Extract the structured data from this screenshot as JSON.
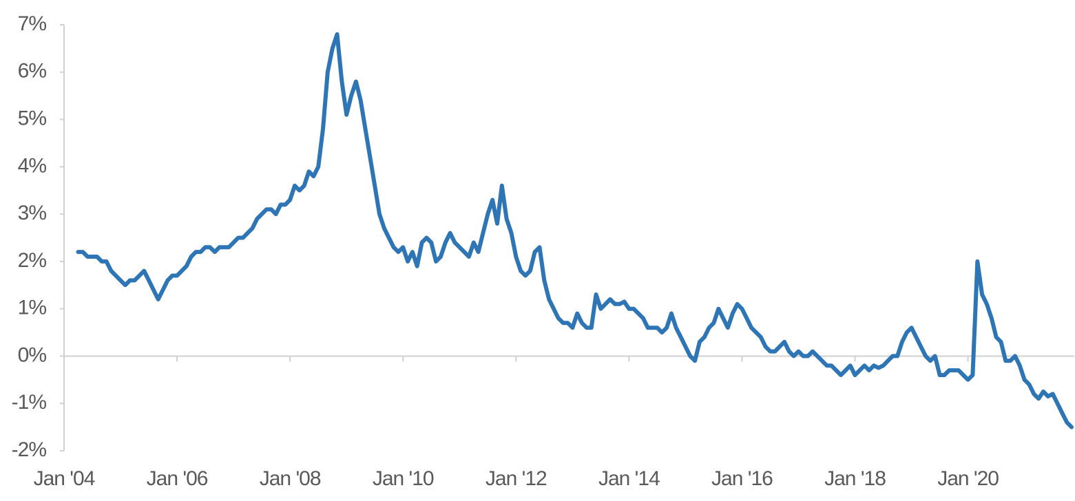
{
  "chart_data": {
    "type": "line",
    "x": [
      "2004-04",
      "2004-05",
      "2004-06",
      "2004-07",
      "2004-08",
      "2004-09",
      "2004-10",
      "2004-11",
      "2004-12",
      "2005-01",
      "2005-02",
      "2005-03",
      "2005-04",
      "2005-05",
      "2005-06",
      "2005-07",
      "2005-08",
      "2005-09",
      "2005-10",
      "2005-11",
      "2005-12",
      "2006-01",
      "2006-02",
      "2006-03",
      "2006-04",
      "2006-05",
      "2006-06",
      "2006-07",
      "2006-08",
      "2006-09",
      "2006-10",
      "2006-11",
      "2006-12",
      "2007-01",
      "2007-02",
      "2007-03",
      "2007-04",
      "2007-05",
      "2007-06",
      "2007-07",
      "2007-08",
      "2007-09",
      "2007-10",
      "2007-11",
      "2007-12",
      "2008-01",
      "2008-02",
      "2008-03",
      "2008-04",
      "2008-05",
      "2008-06",
      "2008-07",
      "2008-08",
      "2008-09",
      "2008-10",
      "2008-11",
      "2008-12",
      "2009-01",
      "2009-02",
      "2009-03",
      "2009-04",
      "2009-05",
      "2009-06",
      "2009-07",
      "2009-08",
      "2009-09",
      "2009-10",
      "2009-11",
      "2009-12",
      "2010-01",
      "2010-02",
      "2010-03",
      "2010-04",
      "2010-05",
      "2010-06",
      "2010-07",
      "2010-08",
      "2010-09",
      "2010-10",
      "2010-11",
      "2010-12",
      "2011-01",
      "2011-02",
      "2011-03",
      "2011-04",
      "2011-05",
      "2011-06",
      "2011-07",
      "2011-08",
      "2011-09",
      "2011-10",
      "2011-11",
      "2011-12",
      "2012-01",
      "2012-02",
      "2012-03",
      "2012-04",
      "2012-05",
      "2012-06",
      "2012-07",
      "2012-08",
      "2012-09",
      "2012-10",
      "2012-11",
      "2012-12",
      "2013-01",
      "2013-02",
      "2013-03",
      "2013-04",
      "2013-05",
      "2013-06",
      "2013-07",
      "2013-08",
      "2013-09",
      "2013-10",
      "2013-11",
      "2013-12",
      "2014-01",
      "2014-02",
      "2014-03",
      "2014-04",
      "2014-05",
      "2014-06",
      "2014-07",
      "2014-08",
      "2014-09",
      "2014-10",
      "2014-11",
      "2014-12",
      "2015-01",
      "2015-02",
      "2015-03",
      "2015-04",
      "2015-05",
      "2015-06",
      "2015-07",
      "2015-08",
      "2015-09",
      "2015-10",
      "2015-11",
      "2015-12",
      "2016-01",
      "2016-02",
      "2016-03",
      "2016-04",
      "2016-05",
      "2016-06",
      "2016-07",
      "2016-08",
      "2016-09",
      "2016-10",
      "2016-11",
      "2016-12",
      "2017-01",
      "2017-02",
      "2017-03",
      "2017-04",
      "2017-05",
      "2017-06",
      "2017-07",
      "2017-08",
      "2017-09",
      "2017-10",
      "2017-11",
      "2017-12",
      "2018-01",
      "2018-02",
      "2018-03",
      "2018-04",
      "2018-05",
      "2018-06",
      "2018-07",
      "2018-08",
      "2018-09",
      "2018-10",
      "2018-11",
      "2018-12",
      "2019-01",
      "2019-02",
      "2019-03",
      "2019-04",
      "2019-05",
      "2019-06",
      "2019-07",
      "2019-08",
      "2019-09",
      "2019-10",
      "2019-11",
      "2019-12",
      "2020-01",
      "2020-02",
      "2020-03",
      "2020-04",
      "2020-05",
      "2020-06",
      "2020-07",
      "2020-08",
      "2020-09",
      "2020-10",
      "2020-11",
      "2020-12",
      "2021-01",
      "2021-02",
      "2021-03",
      "2021-04",
      "2021-05",
      "2021-06",
      "2021-07",
      "2021-08",
      "2021-09",
      "2021-10",
      "2021-11"
    ],
    "values": [
      2.2,
      2.2,
      2.1,
      2.1,
      2.1,
      2.0,
      2.0,
      1.8,
      1.7,
      1.6,
      1.5,
      1.6,
      1.6,
      1.7,
      1.8,
      1.6,
      1.4,
      1.2,
      1.4,
      1.6,
      1.7,
      1.7,
      1.8,
      1.9,
      2.1,
      2.2,
      2.2,
      2.3,
      2.3,
      2.2,
      2.3,
      2.3,
      2.3,
      2.4,
      2.5,
      2.5,
      2.6,
      2.7,
      2.9,
      3.0,
      3.1,
      3.1,
      3.0,
      3.2,
      3.2,
      3.3,
      3.6,
      3.5,
      3.6,
      3.9,
      3.8,
      4.0,
      4.8,
      6.0,
      6.5,
      6.8,
      5.8,
      5.1,
      5.5,
      5.8,
      5.4,
      4.8,
      4.2,
      3.6,
      3.0,
      2.7,
      2.5,
      2.3,
      2.2,
      2.3,
      2.0,
      2.2,
      1.9,
      2.4,
      2.5,
      2.4,
      2.0,
      2.1,
      2.4,
      2.6,
      2.4,
      2.3,
      2.2,
      2.1,
      2.4,
      2.2,
      2.6,
      3.0,
      3.3,
      2.8,
      3.6,
      2.9,
      2.6,
      2.1,
      1.8,
      1.7,
      1.8,
      2.2,
      2.3,
      1.6,
      1.2,
      1.0,
      0.8,
      0.7,
      0.7,
      0.6,
      0.9,
      0.7,
      0.6,
      0.6,
      1.3,
      1.0,
      1.1,
      1.2,
      1.1,
      1.1,
      1.15,
      1.0,
      1.0,
      0.9,
      0.8,
      0.6,
      0.6,
      0.6,
      0.5,
      0.6,
      0.9,
      0.6,
      0.4,
      0.2,
      0.0,
      -0.1,
      0.3,
      0.4,
      0.6,
      0.7,
      1.0,
      0.8,
      0.6,
      0.9,
      1.1,
      1.0,
      0.8,
      0.6,
      0.5,
      0.4,
      0.2,
      0.1,
      0.1,
      0.2,
      0.3,
      0.1,
      0.0,
      0.1,
      0.0,
      0.0,
      0.1,
      0.0,
      -0.1,
      -0.2,
      -0.2,
      -0.3,
      -0.4,
      -0.3,
      -0.2,
      -0.4,
      -0.3,
      -0.2,
      -0.3,
      -0.2,
      -0.25,
      -0.2,
      -0.1,
      0.0,
      0.0,
      0.3,
      0.5,
      0.6,
      0.4,
      0.2,
      0.0,
      -0.1,
      0.0,
      -0.4,
      -0.4,
      -0.3,
      -0.3,
      -0.3,
      -0.4,
      -0.5,
      -0.4,
      2.0,
      1.3,
      1.1,
      0.8,
      0.4,
      0.3,
      -0.1,
      -0.1,
      0.0,
      -0.2,
      -0.5,
      -0.6,
      -0.8,
      -0.9,
      -0.75,
      -0.85,
      -0.8,
      -1.0,
      -1.2,
      -1.4,
      -1.5
    ],
    "color": "#2e75b6",
    "xlim": [
      "2004-01",
      "2021-11"
    ],
    "xticks": [
      {
        "value": "2004-01",
        "label": "Jan '04"
      },
      {
        "value": "2006-01",
        "label": "Jan '06"
      },
      {
        "value": "2008-01",
        "label": "Jan '08"
      },
      {
        "value": "2010-01",
        "label": "Jan '10"
      },
      {
        "value": "2012-01",
        "label": "Jan '12"
      },
      {
        "value": "2014-01",
        "label": "Jan '14"
      },
      {
        "value": "2016-01",
        "label": "Jan '16"
      },
      {
        "value": "2018-01",
        "label": "Jan '18"
      },
      {
        "value": "2020-01",
        "label": "Jan '20"
      }
    ],
    "ylim": [
      -2,
      7
    ],
    "yticks": [
      {
        "value": -2,
        "label": "-2%"
      },
      {
        "value": -1,
        "label": "-1%"
      },
      {
        "value": 0,
        "label": "0%"
      },
      {
        "value": 1,
        "label": "1%"
      },
      {
        "value": 2,
        "label": "2%"
      },
      {
        "value": 3,
        "label": "3%"
      },
      {
        "value": 4,
        "label": "4%"
      },
      {
        "value": 5,
        "label": "5%"
      },
      {
        "value": 6,
        "label": "6%"
      },
      {
        "value": 7,
        "label": "7%"
      }
    ],
    "grid": false
  }
}
